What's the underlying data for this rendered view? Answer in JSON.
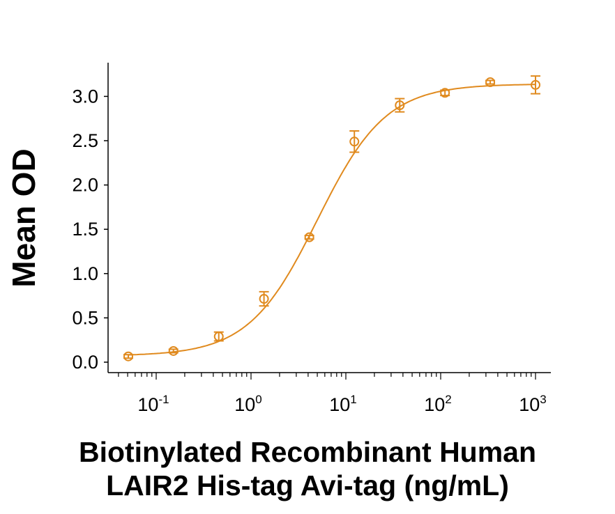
{
  "chart_data": {
    "type": "scatter",
    "title": "",
    "xlabel_line1": "Biotinylated Recombinant Human",
    "xlabel_line2": "LAIR2 His-tag Avi-tag (ng/mL)",
    "ylabel": "Mean OD",
    "x_scale": "log",
    "xlim": [
      0.035,
      1500
    ],
    "ylim": [
      -0.12,
      3.4
    ],
    "x_ticks": [
      {
        "base": "10",
        "exp": "-1"
      },
      {
        "base": "10",
        "exp": "0"
      },
      {
        "base": "10",
        "exp": "1"
      },
      {
        "base": "10",
        "exp": "2"
      },
      {
        "base": "10",
        "exp": "3"
      }
    ],
    "y_ticks": [
      "0.0",
      "0.5",
      "1.0",
      "1.5",
      "2.0",
      "2.5",
      "3.0"
    ],
    "grid": false,
    "color": "#E08A1E",
    "series": [
      {
        "x": [
          0.0508,
          0.152,
          0.457,
          1.37,
          4.12,
          12.3,
          37.0,
          111,
          333,
          1000
        ],
        "y": [
          0.065,
          0.126,
          0.29,
          0.715,
          1.41,
          2.49,
          2.9,
          3.04,
          3.16,
          3.13
        ],
        "error": [
          0.02,
          0.02,
          0.05,
          0.08,
          0.02,
          0.12,
          0.075,
          0.03,
          0.02,
          0.1
        ],
        "fit": {
          "model": "4PL",
          "bottom": 0.07,
          "top": 3.14,
          "ec50": 5.0,
          "hill": 1.2
        }
      }
    ]
  }
}
